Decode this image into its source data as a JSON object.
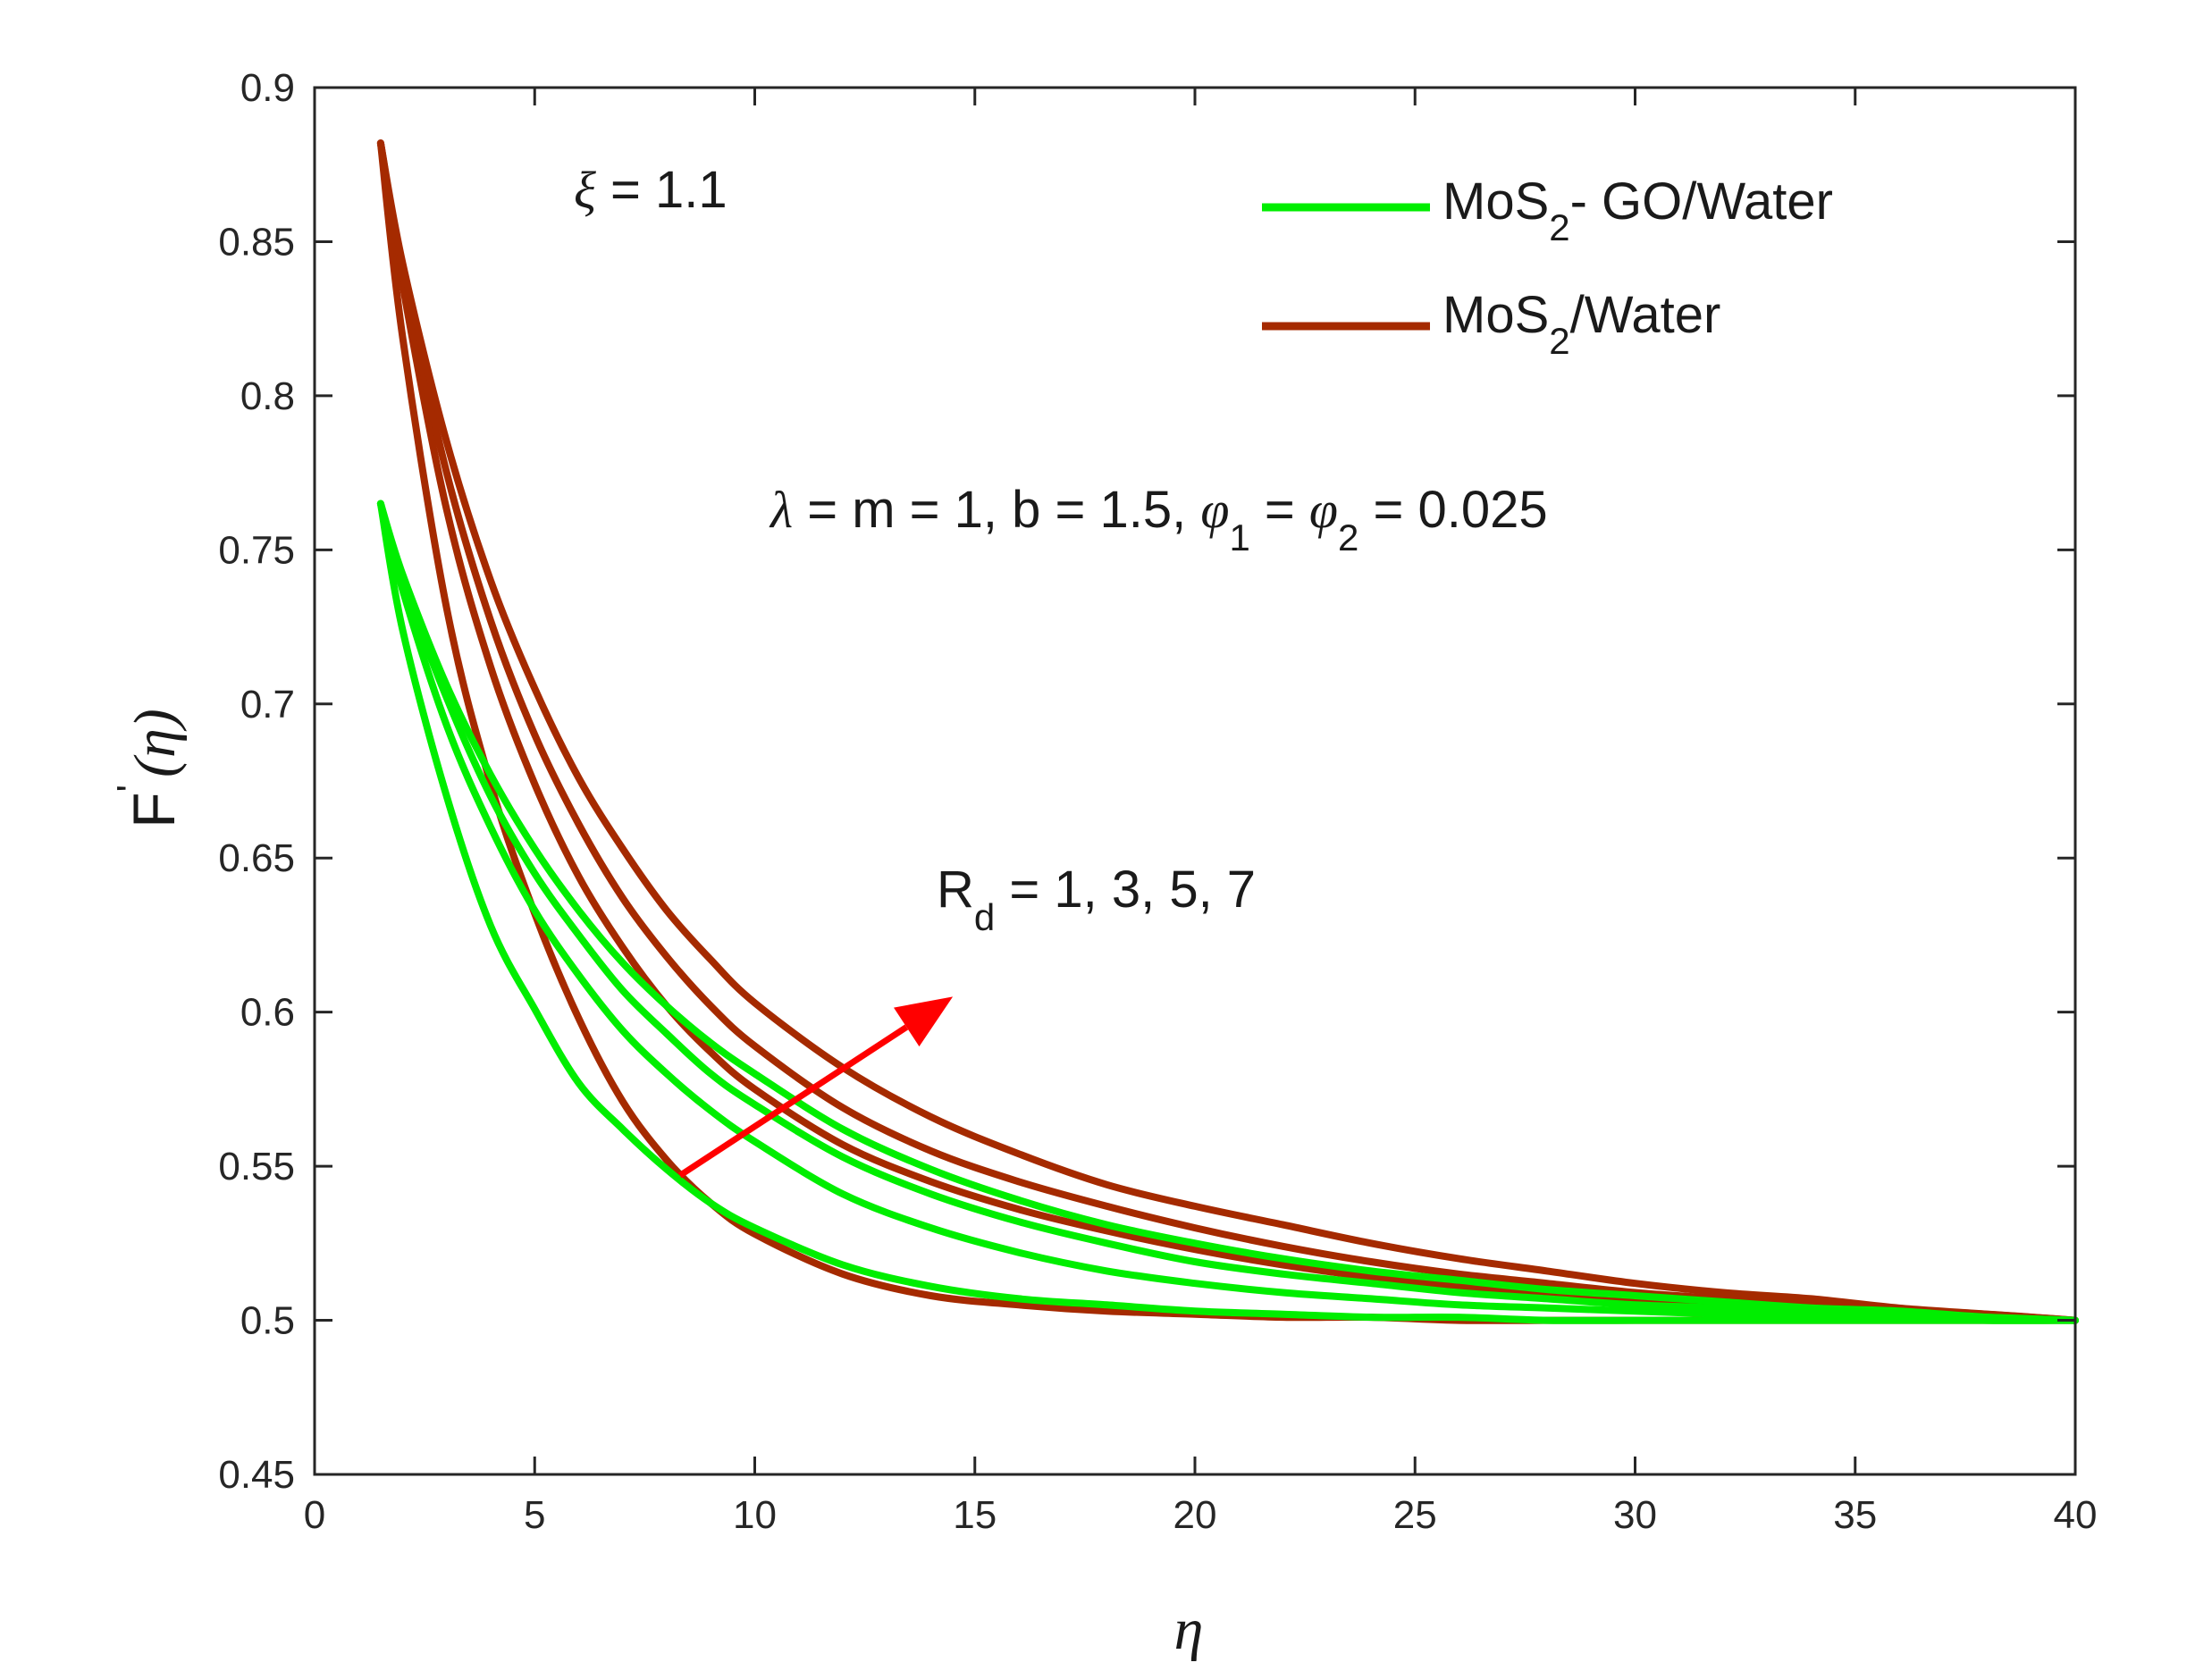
{
  "chart_data": {
    "type": "line",
    "xlabel": "η",
    "ylabel": {
      "base": "F",
      "prime": "'",
      "arg": "(η)"
    },
    "xlim": [
      0,
      40
    ],
    "ylim": [
      0.45,
      0.9
    ],
    "xticks": [
      0,
      5,
      10,
      15,
      20,
      25,
      30,
      35,
      40
    ],
    "yticks": [
      0.45,
      0.5,
      0.55,
      0.6,
      0.65,
      0.7,
      0.75,
      0.8,
      0.85,
      0.9
    ],
    "grid": false,
    "legend_position": "top-right",
    "legend": [
      {
        "key": "green",
        "pre": "MoS",
        "sub": "2",
        "post": "- GO/Water"
      },
      {
        "key": "brown",
        "pre": "MoS",
        "sub": "2",
        "post": "/Water"
      }
    ],
    "annotations": {
      "xi": {
        "sym": "ξ",
        "text": " = 1.1"
      },
      "params": {
        "lambda": "λ",
        "t1": " = m = 1, b = 1.5, ",
        "phi": "φ",
        "s1": "1",
        "t2": " = ",
        "s2": "2",
        "t3": " = 0.025"
      },
      "rd": {
        "R": "R",
        "sub": "d",
        "text": " = 1, 3, 5, 7"
      }
    },
    "arrow": {
      "from": [
        8.3,
        0.547
      ],
      "to": [
        14.5,
        0.605
      ],
      "color": "#ff0000"
    },
    "colors": {
      "green": "#00ee00",
      "brown": "#a52a00"
    },
    "x": [
      1.5,
      2,
      3,
      4,
      5,
      6,
      7,
      8,
      9,
      10,
      12,
      14,
      16,
      18,
      20,
      22,
      24,
      26,
      28,
      30,
      32,
      34,
      36,
      38,
      40
    ],
    "series": [
      {
        "fluid": "green",
        "Rd": 1,
        "values": [
          0.765,
          0.724,
          0.67,
          0.628,
          0.601,
          0.577,
          0.562,
          0.549,
          0.538,
          0.53,
          0.518,
          0.511,
          0.507,
          0.505,
          0.503,
          0.502,
          0.501,
          0.501,
          0.5,
          0.5,
          0.5,
          0.5,
          0.5,
          0.5,
          0.5
        ]
      },
      {
        "fluid": "green",
        "Rd": 3,
        "values": [
          0.765,
          0.737,
          0.693,
          0.66,
          0.633,
          0.612,
          0.594,
          0.58,
          0.568,
          0.558,
          0.541,
          0.53,
          0.522,
          0.516,
          0.512,
          0.509,
          0.507,
          0.505,
          0.504,
          0.503,
          0.502,
          0.501,
          0.501,
          0.5,
          0.5
        ]
      },
      {
        "fluid": "green",
        "Rd": 5,
        "values": [
          0.765,
          0.74,
          0.702,
          0.67,
          0.645,
          0.625,
          0.607,
          0.593,
          0.58,
          0.57,
          0.553,
          0.541,
          0.532,
          0.525,
          0.519,
          0.515,
          0.512,
          0.509,
          0.507,
          0.505,
          0.504,
          0.503,
          0.502,
          0.501,
          0.5
        ]
      },
      {
        "fluid": "green",
        "Rd": 7,
        "values": [
          0.765,
          0.742,
          0.706,
          0.677,
          0.653,
          0.633,
          0.616,
          0.602,
          0.59,
          0.58,
          0.562,
          0.549,
          0.539,
          0.531,
          0.525,
          0.52,
          0.516,
          0.513,
          0.51,
          0.508,
          0.506,
          0.504,
          0.503,
          0.501,
          0.5
        ]
      },
      {
        "fluid": "brown",
        "Rd": 1,
        "values": [
          0.882,
          0.819,
          0.731,
          0.674,
          0.632,
          0.598,
          0.571,
          0.552,
          0.538,
          0.528,
          0.515,
          0.508,
          0.505,
          0.503,
          0.502,
          0.501,
          0.501,
          0.5,
          0.5,
          0.5,
          0.5,
          0.5,
          0.5,
          0.5,
          0.5
        ]
      },
      {
        "fluid": "brown",
        "Rd": 3,
        "values": [
          0.882,
          0.836,
          0.763,
          0.712,
          0.674,
          0.644,
          0.621,
          0.602,
          0.587,
          0.575,
          0.557,
          0.545,
          0.536,
          0.529,
          0.523,
          0.518,
          0.514,
          0.511,
          0.509,
          0.507,
          0.505,
          0.504,
          0.502,
          0.501,
          0.5
        ]
      },
      {
        "fluid": "brown",
        "Rd": 5,
        "values": [
          0.882,
          0.84,
          0.775,
          0.727,
          0.69,
          0.661,
          0.637,
          0.618,
          0.602,
          0.589,
          0.569,
          0.555,
          0.545,
          0.537,
          0.53,
          0.524,
          0.519,
          0.515,
          0.512,
          0.509,
          0.507,
          0.505,
          0.503,
          0.502,
          0.5
        ]
      },
      {
        "fluid": "brown",
        "Rd": 7,
        "values": [
          0.882,
          0.843,
          0.785,
          0.74,
          0.705,
          0.676,
          0.653,
          0.633,
          0.617,
          0.603,
          0.582,
          0.566,
          0.554,
          0.544,
          0.537,
          0.531,
          0.525,
          0.52,
          0.516,
          0.512,
          0.509,
          0.507,
          0.504,
          0.502,
          0.5
        ]
      }
    ]
  }
}
